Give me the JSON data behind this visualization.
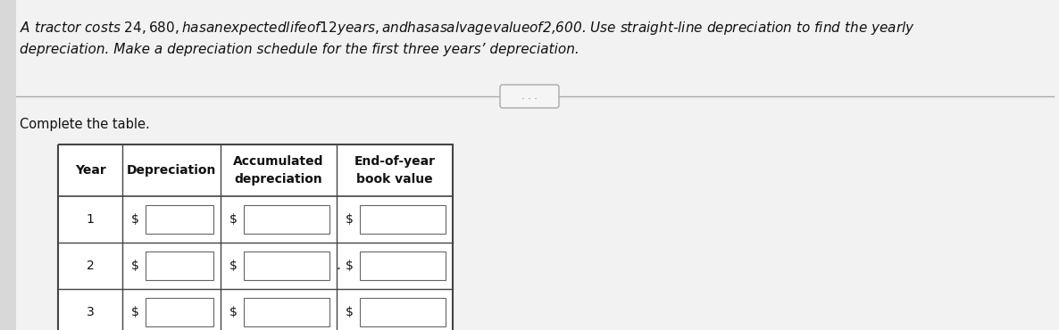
{
  "title_line1": "A tractor costs $24,680, has an expected life of 12 years, and has a salvage value of $2,600. Use straight-line depreciation to find the yearly",
  "title_line2": "depreciation. Make a depreciation schedule for the first three years’ depreciation.",
  "complete_text": "Complete the table.",
  "ellipsis_text": "...",
  "col_headers_row1": [
    "Year",
    "Depreciation",
    "Accumulated",
    "End-of-year"
  ],
  "col_headers_row2": [
    "",
    "",
    "depreciation",
    "book value"
  ],
  "rows": [
    "1",
    "2",
    "3"
  ],
  "bg_color": "#e8e8e8",
  "main_bg": "#f2f2f2",
  "table_bg": "#ffffff",
  "border_color": "#444444",
  "text_color": "#111111",
  "title_fontsize": 11.0,
  "body_fontsize": 10.5,
  "table_fontsize": 9.5
}
